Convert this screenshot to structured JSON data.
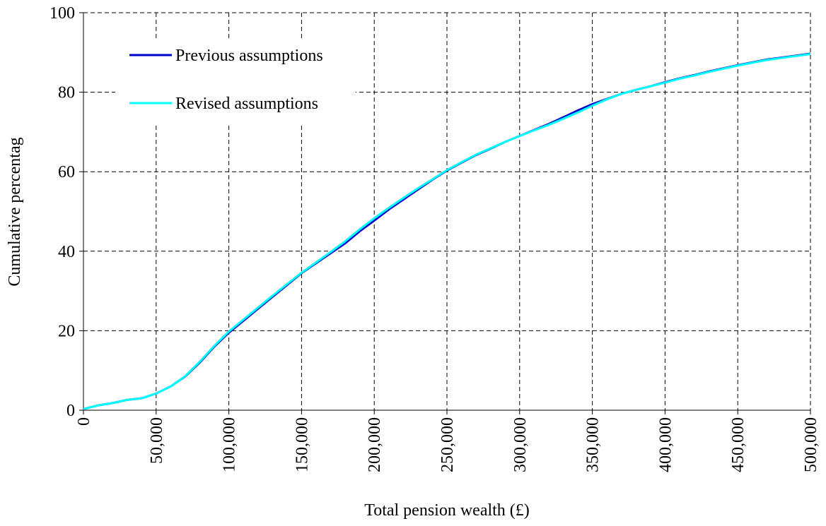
{
  "chart_data": {
    "type": "line",
    "x_label": "Total pension wealth (£)",
    "y_label": "Cumulative percentag",
    "x": [
      0,
      10000,
      20000,
      30000,
      40000,
      50000,
      60000,
      70000,
      80000,
      90000,
      100000,
      110000,
      120000,
      130000,
      140000,
      150000,
      160000,
      170000,
      180000,
      190000,
      200000,
      210000,
      220000,
      230000,
      240000,
      250000,
      260000,
      270000,
      280000,
      290000,
      300000,
      310000,
      320000,
      330000,
      340000,
      350000,
      360000,
      370000,
      380000,
      390000,
      400000,
      410000,
      420000,
      430000,
      440000,
      450000,
      460000,
      470000,
      480000,
      490000,
      500000
    ],
    "series": [
      {
        "name": "Previous assumptions",
        "color": "#0000cc",
        "values": [
          0.3,
          1.2,
          1.8,
          2.6,
          3,
          4.2,
          6,
          8.5,
          12,
          16,
          19.5,
          22.5,
          25.5,
          28.5,
          31.5,
          34.5,
          37,
          39.5,
          42,
          45,
          47.7,
          50.5,
          53,
          55.5,
          58,
          60.3,
          62.3,
          64.2,
          65.8,
          67.5,
          69,
          70.5,
          72,
          73.7,
          75.4,
          77,
          78.3,
          79.6,
          80.6,
          81.5,
          82.5,
          83.5,
          84.3,
          85.2,
          86,
          86.8,
          87.5,
          88.2,
          88.7,
          89.2,
          89.7
        ]
      },
      {
        "name": "Revised assumptions",
        "color": "#00ffff",
        "values": [
          0.3,
          1.2,
          1.8,
          2.6,
          3,
          4.2,
          6,
          8.6,
          12.2,
          16.2,
          19.8,
          22.8,
          25.8,
          28.8,
          31.7,
          34.6,
          37.2,
          39.8,
          42.5,
          45.5,
          48.3,
          50.9,
          53.4,
          55.8,
          58.1,
          60.4,
          62.4,
          64.3,
          65.9,
          67.5,
          69,
          70.4,
          71.8,
          73.3,
          74.9,
          76.6,
          78.2,
          79.6,
          80.6,
          81.5,
          82.4,
          83.4,
          84.2,
          85.1,
          85.9,
          86.7,
          87.4,
          88.1,
          88.6,
          89.1,
          89.6
        ]
      }
    ],
    "xlim": [
      0,
      500000
    ],
    "ylim": [
      0,
      100
    ],
    "xticks": [
      0,
      {
        "value": 50000,
        "label": "50,000"
      },
      {
        "value": 100000,
        "label": "100,000"
      },
      {
        "value": 150000,
        "label": "150,000"
      },
      {
        "value": 200000,
        "label": "200,000"
      },
      {
        "value": 250000,
        "label": "250,000"
      },
      {
        "value": 300000,
        "label": "300,000"
      },
      {
        "value": 350000,
        "label": "350,000"
      },
      {
        "value": 400000,
        "label": "400,000"
      },
      {
        "value": 450000,
        "label": "450,000"
      },
      {
        "value": 500000,
        "label": "500,000"
      }
    ],
    "yticks": [
      0,
      20,
      40,
      60,
      80,
      100
    ],
    "grid": true,
    "legend": "upper-left"
  }
}
